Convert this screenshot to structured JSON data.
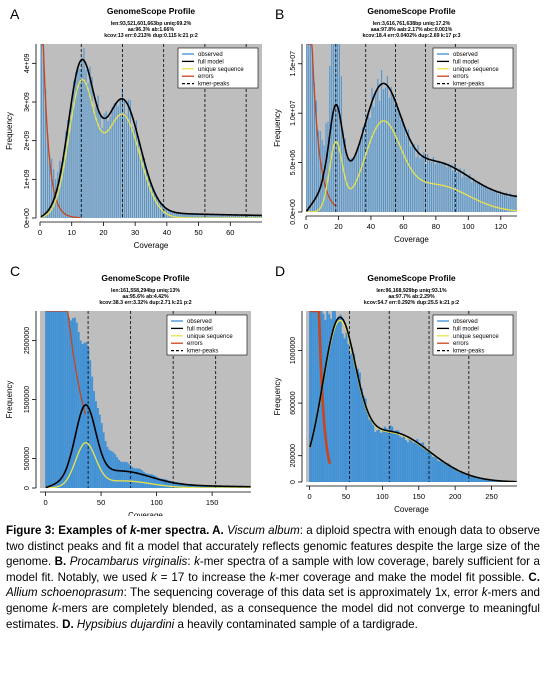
{
  "panels": [
    {
      "letter": "A",
      "title": "GenomeScope Profile",
      "stats": [
        "len:93,521,601,663bp uniq:69.2%",
        "aa:96.3% ab:1.66%",
        "kcov:13 err:0.213% dup:0.115 k:21 p:2"
      ],
      "xlabel": "Coverage",
      "ylabel": "Frequency",
      "legend": [
        "observed",
        "full model",
        "unique sequence",
        "errors",
        "kmer-peaks"
      ]
    },
    {
      "letter": "B",
      "title": "GenomeScope Profile",
      "stats": [
        "len:3,616,761,638bp uniq:17.2%",
        "aaa:97.8% aab:2.17% abc:0.001%",
        "kcov:18.4 err:0.0402% dup:2.69 k:17 p:3"
      ],
      "xlabel": "Coverage",
      "ylabel": "Frequency",
      "legend": [
        "observed",
        "full model",
        "unique sequence",
        "errors",
        "kmer-peaks"
      ]
    },
    {
      "letter": "C",
      "title": "GenomeScope Profile",
      "stats": [
        "len:161,558,294bp uniq:13%",
        "aa:95.6% ab:4.42%",
        "kcov:38.3 err:3.32% dup:2.71 k:21 p:2"
      ],
      "xlabel": "Coverage",
      "ylabel": "Frequency",
      "legend": [
        "observed",
        "full model",
        "unique sequence",
        "errors",
        "kmer-peaks"
      ]
    },
    {
      "letter": "D",
      "title": "GenomeScope Profile",
      "stats": [
        "len:96,168,929bp uniq:93.1%",
        "aa:97.7% ab:2.29%",
        "kcov:54.7 err:0.292% dup:25.5 k:21 p:2"
      ],
      "xlabel": "Coverage",
      "ylabel": "Frequency",
      "legend": [
        "observed",
        "full model",
        "unique sequence",
        "errors",
        "kmer-peaks"
      ]
    }
  ],
  "chart_data": [
    {
      "type": "bar",
      "panel": "A",
      "xlim": [
        0,
        70
      ],
      "ylim": [
        0,
        4500000000
      ],
      "xticks": [
        0,
        10,
        20,
        30,
        40,
        50,
        60
      ],
      "yticks": [
        0,
        1000000000,
        2000000000,
        3000000000,
        4000000000
      ],
      "ytick_labels": [
        "0e+00",
        "1e+09",
        "2e+09",
        "3e+09",
        "4e+09"
      ],
      "kmer_peaks": [
        13,
        26,
        39,
        52,
        65
      ],
      "model": {
        "peaks": [
          {
            "mu": 13,
            "sd": 4,
            "h": 3700000000
          },
          {
            "mu": 26,
            "sd": 5.5,
            "h": 2900000000
          }
        ],
        "tail": {
          "h": 210000000,
          "k": 0.02
        },
        "err": {
          "h": 8000000000,
          "k": 0.55
        },
        "unique_scale": 0.92
      },
      "series": [
        "observed",
        "full model",
        "unique sequence",
        "errors"
      ],
      "legend_position": "top-right",
      "grid": false
    },
    {
      "type": "bar",
      "panel": "B",
      "xlim": [
        0,
        130
      ],
      "ylim": [
        0,
        17000000
      ],
      "xticks": [
        0,
        20,
        40,
        60,
        80,
        100,
        120
      ],
      "yticks": [
        0,
        5000000,
        10000000,
        15000000
      ],
      "ytick_labels": [
        "0.0e+00",
        "5.0e+06",
        "1.0e+07",
        "1.5e+07"
      ],
      "kmer_peaks": [
        18.4,
        36.8,
        55.2,
        73.6,
        92
      ],
      "model": {
        "peaks": [
          {
            "mu": 18.4,
            "sd": 4,
            "h": 8000000
          },
          {
            "mu": 47,
            "sd": 11,
            "h": 10000000
          },
          {
            "mu": 80,
            "sd": 20,
            "h": 3200000
          }
        ],
        "tail": {
          "h": 2500000,
          "k": 0.005
        },
        "err": {
          "h": 40000000,
          "k": 0.23
        },
        "unique_scale": 0.85,
        "observed_spikes": {
          "at": 18,
          "h": 16000000,
          "sd": 2.2
        }
      },
      "series": [
        "observed",
        "full model",
        "unique sequence",
        "errors"
      ],
      "legend_position": "top-right",
      "grid": false
    },
    {
      "type": "bar",
      "panel": "C",
      "xlim": [
        -5,
        185
      ],
      "ylim": [
        0,
        3000000
      ],
      "xticks": [
        0,
        50,
        100,
        150
      ],
      "yticks": [
        0,
        500000,
        1500000,
        2500000
      ],
      "ytick_labels": [
        "0",
        "500000",
        "1500000",
        "2500000"
      ],
      "kmer_peaks": [
        38.3,
        76.6,
        114.9,
        153.2
      ],
      "model": {
        "peaks": [
          {
            "mu": 36,
            "sd": 9,
            "h": 1200000
          },
          {
            "mu": 70,
            "sd": 25,
            "h": 200000
          }
        ],
        "tail": {
          "h": 130000,
          "k": 0.012
        },
        "err": {
          "h": 9000000,
          "k": 0.055
        },
        "unique_scale": 0.6,
        "observed_dense": true
      },
      "series": [
        "observed",
        "full model",
        "unique sequence",
        "errors"
      ],
      "legend_position": "top-right",
      "grid": false
    },
    {
      "type": "bar",
      "panel": "D",
      "xlim": [
        -5,
        285
      ],
      "ylim": [
        0,
        1300000
      ],
      "xticks": [
        0,
        50,
        100,
        150,
        200,
        250
      ],
      "yticks": [
        0,
        200000,
        600000,
        1000000
      ],
      "ytick_labels": [
        "0",
        "200000",
        "600000",
        "1000000"
      ],
      "kmer_peaks": [
        54.7,
        109.4,
        164.1,
        218.8
      ],
      "model": {
        "peaks": [
          {
            "mu": 40,
            "sd": 22,
            "h": 1080000
          },
          {
            "mu": 110,
            "sd": 55,
            "h": 380000
          }
        ],
        "tail": {
          "h": 0,
          "k": 0.01
        },
        "err": {
          "h": 9000000,
          "k": 0.15
        },
        "unique_scale": 0.98,
        "observed_dense": true
      },
      "series": [
        "observed",
        "full model",
        "unique sequence",
        "errors"
      ],
      "legend_position": "top-right",
      "grid": false
    }
  ],
  "colors": {
    "panel_bg": "#bebebe",
    "observed": "#3b8fd6",
    "full_model": "#000000",
    "unique": "#e8e34a",
    "errors": "#c8451d"
  },
  "caption": {
    "lead": "Figure 3: Examples of",
    "kmer_em": "k",
    "lead2": "-mer spectra.",
    "a_label": "A.",
    "a_species": "Viscum album",
    "a_text": ": a diploid spectra with enough data to observe two distinct peaks and fit a model that accurately reflects genomic features despite the large size of the genome.",
    "b_label": "B.",
    "b_species": "Procambarus virginalis",
    "b_text1": ": ",
    "b_k1": "k",
    "b_text2": "-mer spectra of a sample with low coverage, barely sufficient for a model fit. Notably, we used",
    "b_k2": "k",
    "b_text3": " = 17 to increase the",
    "b_k3": "k",
    "b_text4": "-mer coverage and make the model fit possible.",
    "c_label": "C.",
    "c_species": "Allium schoenoprasum",
    "c_text1": ": The sequencing coverage of this data set is approximately 1x, error",
    "c_k1": "k",
    "c_text2": "-mers and genome",
    "c_k2": "k",
    "c_text3": "-mers are completely blended, as a consequence the model did not converge to meaningful estimates.",
    "d_label": "D.",
    "d_species": "Hypsibius dujardini",
    "d_text": " a heavily contaminated sample of a tardigrade."
  }
}
